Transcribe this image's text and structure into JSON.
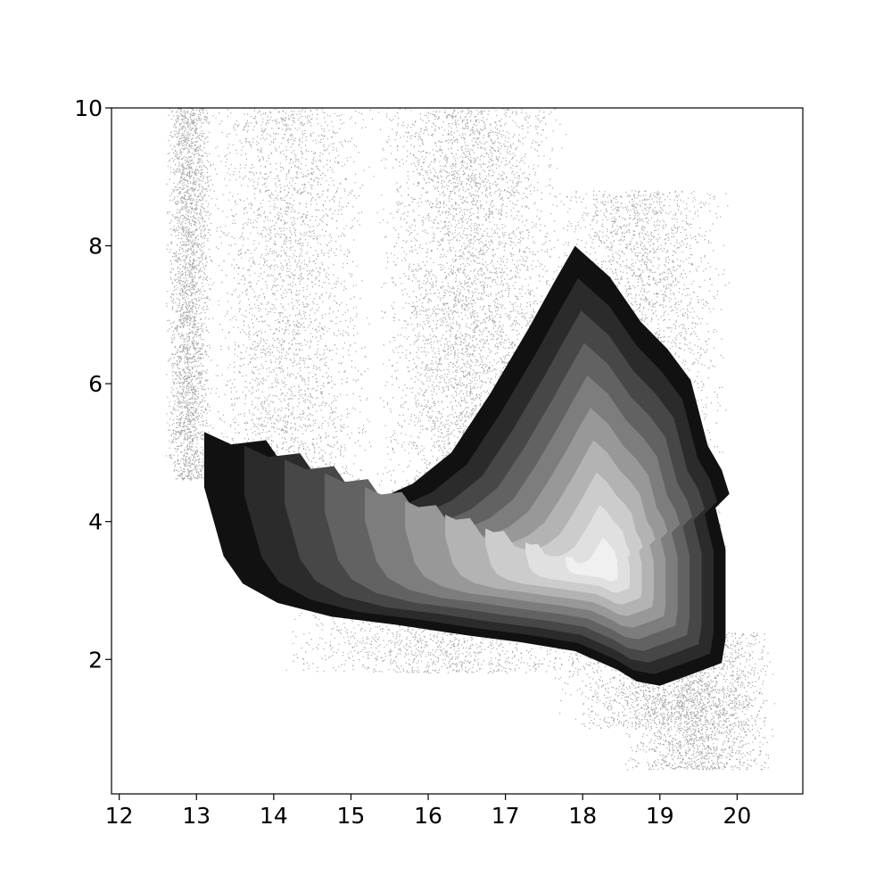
{
  "chart_data": {
    "type": "scatter",
    "title": "",
    "xlabel": "",
    "ylabel": "",
    "xlim": [
      11.9,
      20.85
    ],
    "ylim": [
      0.05,
      10
    ],
    "x_ticks": [
      12,
      13,
      14,
      15,
      16,
      17,
      18,
      19,
      20
    ],
    "y_ticks": [
      2,
      4,
      6,
      8,
      10
    ],
    "x_tick_labels": [
      "12",
      "13",
      "14",
      "15",
      "16",
      "17",
      "18",
      "19",
      "20"
    ],
    "y_tick_labels": [
      "2",
      "4",
      "6",
      "8",
      "10"
    ],
    "grid": false,
    "legend": "none",
    "colors": {
      "points": "#000000",
      "contour_levels": [
        "#111111",
        "#2b2b2b",
        "#474747",
        "#626262",
        "#7d7d7d",
        "#989898",
        "#b3b3b3",
        "#cccccc",
        "#e0e0e0",
        "#f0f0f0"
      ]
    },
    "density_contours": {
      "levels": 10,
      "outer_boundary": [
        [
          13.1,
          5.3
        ],
        [
          13.45,
          5.12
        ],
        [
          13.9,
          5.18
        ],
        [
          14.35,
          4.45
        ],
        [
          14.8,
          4.28
        ],
        [
          15.3,
          4.3
        ],
        [
          15.8,
          4.55
        ],
        [
          16.3,
          5.0
        ],
        [
          16.8,
          5.85
        ],
        [
          17.3,
          6.8
        ],
        [
          17.62,
          7.45
        ],
        [
          17.9,
          8.0
        ],
        [
          18.35,
          7.55
        ],
        [
          18.75,
          6.9
        ],
        [
          19.1,
          6.5
        ],
        [
          19.4,
          6.05
        ],
        [
          19.62,
          5.1
        ],
        [
          19.8,
          4.75
        ],
        [
          19.9,
          4.4
        ],
        [
          19.72,
          4.2
        ],
        [
          19.85,
          3.6
        ],
        [
          19.85,
          2.3
        ],
        [
          19.8,
          1.95
        ],
        [
          19.4,
          1.78
        ],
        [
          19.0,
          1.62
        ],
        [
          18.7,
          1.68
        ],
        [
          18.45,
          1.85
        ],
        [
          17.9,
          2.12
        ],
        [
          17.2,
          2.25
        ],
        [
          16.5,
          2.35
        ],
        [
          15.6,
          2.5
        ],
        [
          14.75,
          2.62
        ],
        [
          14.05,
          2.82
        ],
        [
          13.6,
          3.1
        ],
        [
          13.35,
          3.5
        ],
        [
          13.1,
          4.5
        ]
      ],
      "peak": [
        18.3,
        3.3
      ]
    },
    "point_clouds": [
      {
        "x": [
          12.6,
          13.2
        ],
        "y": [
          4.6,
          10.0
        ],
        "weight": 0.14
      },
      {
        "x": [
          13.1,
          15.3
        ],
        "y": [
          4.2,
          10.0
        ],
        "weight": 0.16
      },
      {
        "x": [
          15.3,
          17.8
        ],
        "y": [
          4.3,
          10.0
        ],
        "weight": 0.24
      },
      {
        "x": [
          17.6,
          19.9
        ],
        "y": [
          1.0,
          8.8
        ],
        "weight": 0.28
      },
      {
        "x": [
          18.5,
          20.5
        ],
        "y": [
          0.4,
          2.4
        ],
        "weight": 0.12
      },
      {
        "x": [
          14.0,
          18.5
        ],
        "y": [
          1.8,
          2.7
        ],
        "weight": 0.06
      }
    ]
  }
}
